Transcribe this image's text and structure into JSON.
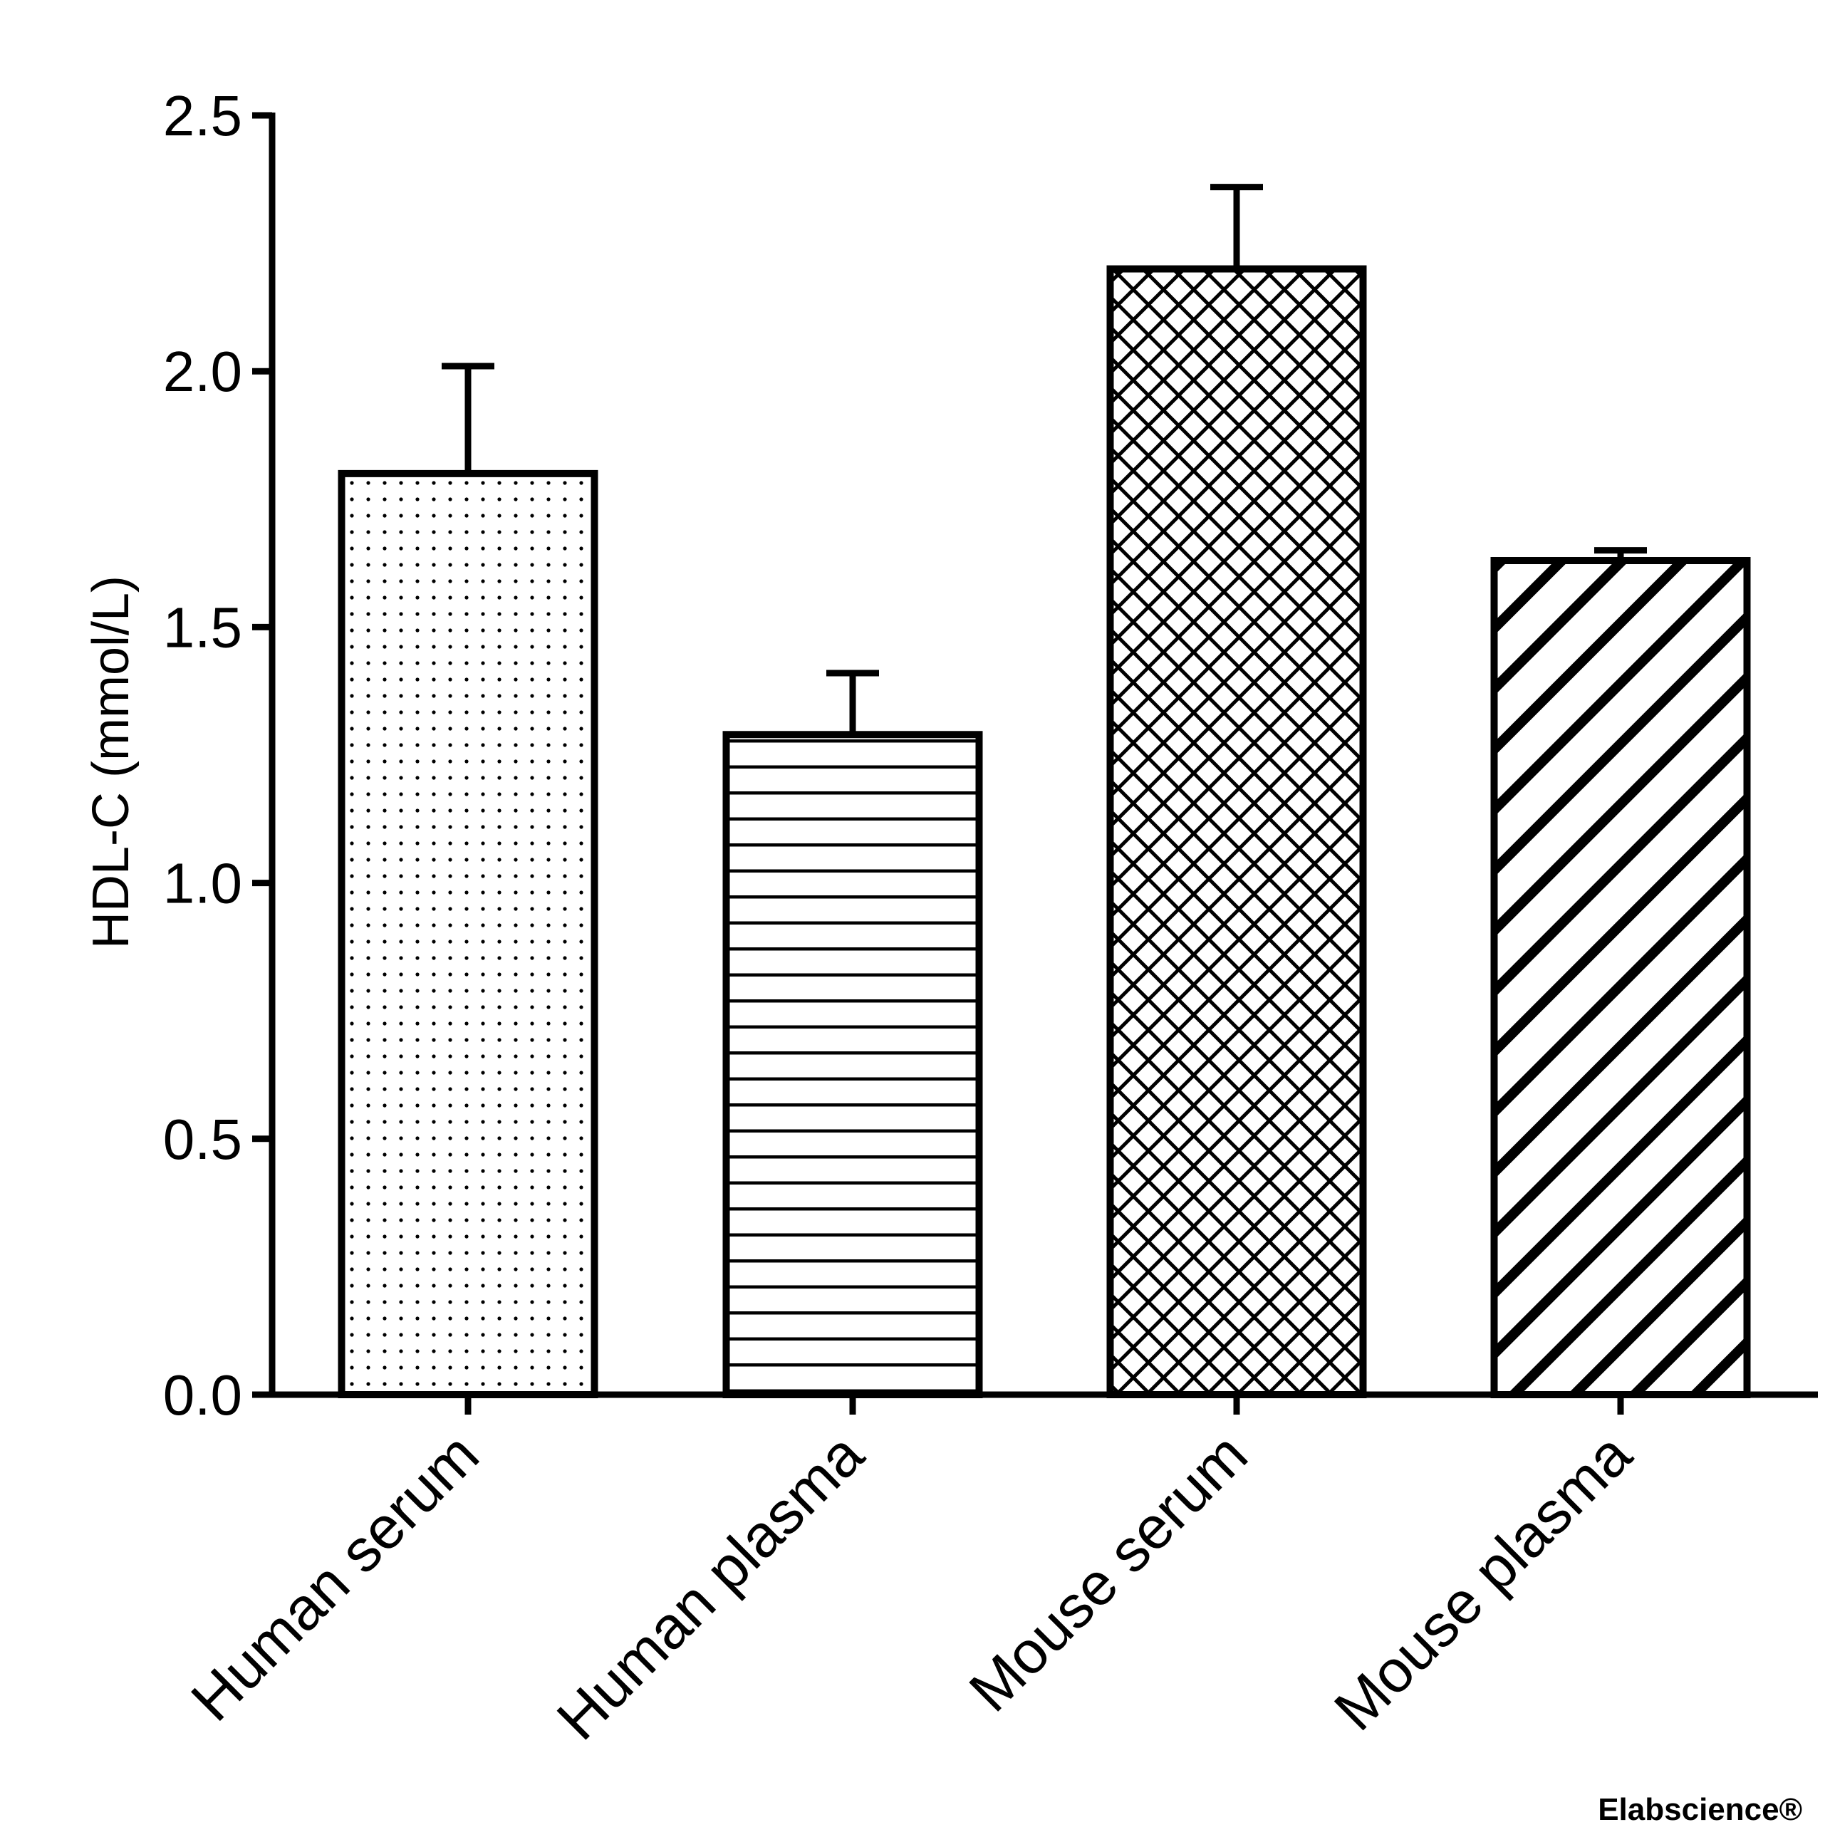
{
  "chart_data": {
    "type": "bar",
    "title": "",
    "xlabel": "",
    "ylabel": "HDL-C (mmol/L)",
    "ylim": [
      0,
      2.5
    ],
    "yticks": [
      0.0,
      0.5,
      1.0,
      1.5,
      2.0,
      2.5
    ],
    "ytick_labels": [
      "0.0",
      "0.5",
      "1.0",
      "1.5",
      "2.0",
      "2.5"
    ],
    "categories": [
      "Human serum",
      "Human plasma",
      "Mouse serum",
      "Mouse plasma"
    ],
    "values": [
      1.8,
      1.29,
      2.2,
      1.63
    ],
    "errors": [
      0.21,
      0.12,
      0.16,
      0.02
    ],
    "patterns": [
      "dots",
      "horizontal-lines",
      "crosshatch",
      "diagonal-stripes"
    ],
    "grid": false,
    "legend": "none"
  },
  "watermark": "Elabscience®",
  "colors": {
    "ink": "#000000",
    "background": "#ffffff",
    "watermark": "#ebebeb"
  }
}
